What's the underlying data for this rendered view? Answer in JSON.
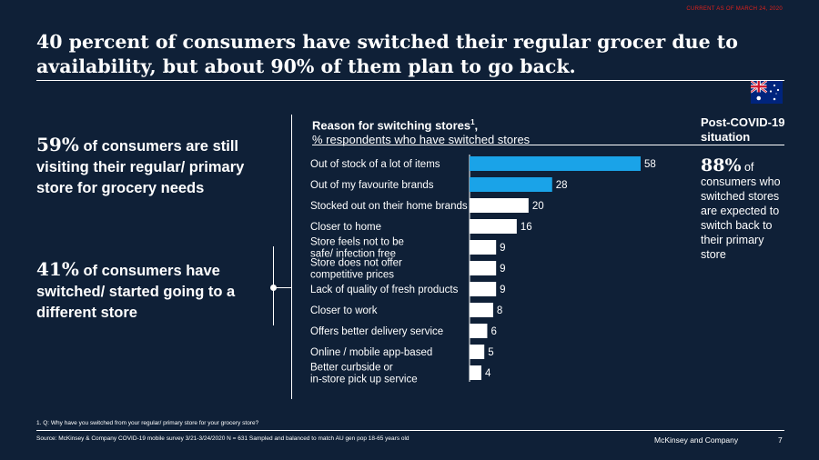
{
  "stamp": "CURRENT AS OF MARCH 24, 2020",
  "headline": "40 percent of consumers have switched their regular grocer due to availability, but about 90% of them plan to go back.",
  "left_panel": {
    "stat1_value": "59%",
    "stat1_text": "of consumers are still visiting their regular/ primary store for grocery needs",
    "stat2_value": "41%",
    "stat2_text": "of consumers have switched/ started going to a different store"
  },
  "chart_title": {
    "line1": "Reason for switching stores",
    "superscript": "1",
    "line1_suffix": ",",
    "line2": "% respondents who have switched stores"
  },
  "post_covid": {
    "title_line1": "Post-COVID-19",
    "title_line2": "situation",
    "value": "88%",
    "text": "of consumers who switched stores are expected to switch back to their primary store"
  },
  "chart_data": {
    "type": "bar",
    "orientation": "horizontal",
    "categories": [
      "Out of stock of a lot of items",
      "Out of my favourite brands",
      "Stocked out on their home brands",
      "Closer to home",
      "Store feels not to be safe/ infection free",
      "Store does not offer competitive prices",
      "Lack of quality of fresh products",
      "Closer to work",
      "Offers better delivery service",
      "Online / mobile app-based",
      "Better curbside or in-store pick up service"
    ],
    "values": [
      58,
      28,
      20,
      16,
      9,
      9,
      9,
      8,
      6,
      5,
      4
    ],
    "highlight_count": 2,
    "xlim": [
      0,
      58
    ],
    "highlight_color": "#1aa3e8",
    "default_color": "#ffffff"
  },
  "footnote": "1. Q: Why have you switched from your regular/ primary store for your grocery store?",
  "source": "Source: McKinsey & Company COVID-19 mobile survey 3/21-3/24/2020 N = 631 Sampled and balanced to match AU gen pop 18-65 years old",
  "brand": "McKinsey and Company",
  "page_number": "7",
  "colors": {
    "background": "#0f2037",
    "accent_red": "#e0201b",
    "highlight_blue": "#1aa3e8"
  },
  "icons": {
    "flag": "australia-flag-icon"
  }
}
